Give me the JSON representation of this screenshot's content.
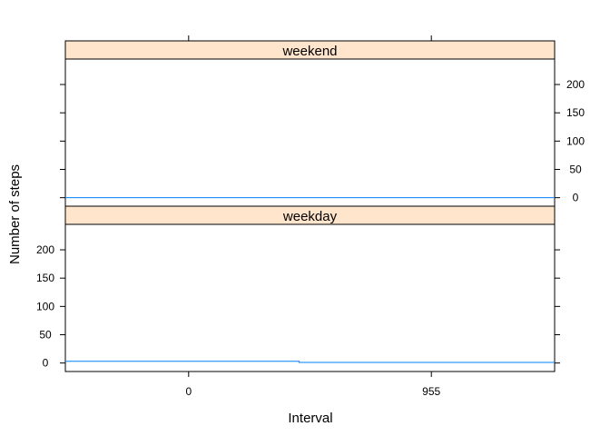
{
  "chart_data": {
    "type": "line",
    "title": "",
    "xlabel": "Interval",
    "ylabel": "Number of steps",
    "xlim": [
      -485,
      1440
    ],
    "ylim": [
      -15,
      245
    ],
    "x_ticks": [
      0,
      955
    ],
    "x_tick_labels": [
      "0",
      "955"
    ],
    "y_ticks": [
      0,
      50,
      100,
      150,
      200
    ],
    "y_tick_labels": [
      "0",
      "50",
      "100",
      "150",
      "200"
    ],
    "layout": "two stacked panels, shared x axis; top panel y labels on right, bottom panel y labels on left",
    "panels": [
      {
        "strip": "weekend",
        "position": "top",
        "x": [
          -485,
          1440
        ],
        "y": [
          0,
          0
        ]
      },
      {
        "strip": "weekday",
        "position": "bottom",
        "x": [
          -485,
          435,
          435,
          1440
        ],
        "y": [
          3,
          3,
          1,
          1
        ]
      }
    ],
    "colors": {
      "line": "#0080ff",
      "strip_fill": "#ffe5cc",
      "frame": "#000000"
    }
  }
}
